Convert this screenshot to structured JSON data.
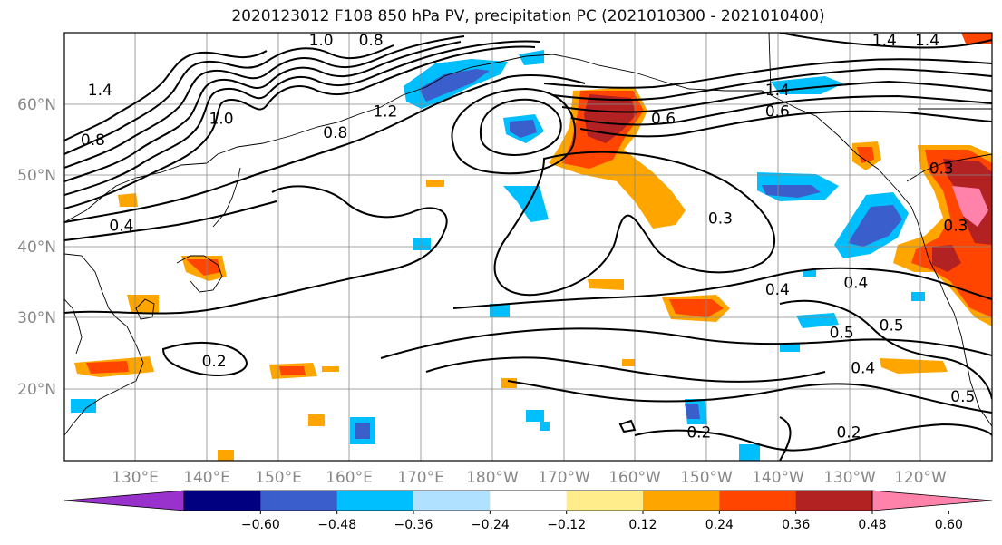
{
  "title": "2020123012 F108 850 hPa PV, precipitation PC (2021010300 - 2021010400)",
  "latitude_labels": [
    "60°N",
    "50°N",
    "40°N",
    "30°N",
    "20°N"
  ],
  "longitude_labels": [
    "130°E",
    "140°E",
    "150°E",
    "160°E",
    "170°E",
    "180°W",
    "170°W",
    "160°W",
    "150°W",
    "140°W",
    "130°W",
    "120°W"
  ],
  "contour_labels": [
    {
      "text": "1.0",
      "lon": 156,
      "lat": 69
    },
    {
      "text": "0.8",
      "lon": 163,
      "lat": 69
    },
    {
      "text": "1.4",
      "lon": 125,
      "lat": 62
    },
    {
      "text": "1.0",
      "lon": 142,
      "lat": 58
    },
    {
      "text": "0.8",
      "lon": 124,
      "lat": 55
    },
    {
      "text": "0.8",
      "lon": 158,
      "lat": 56
    },
    {
      "text": "1.2",
      "lon": 165,
      "lat": 59
    },
    {
      "text": "0.4",
      "lon": 128,
      "lat": 43
    },
    {
      "text": "0.2",
      "lon": 141,
      "lat": 24
    },
    {
      "text": "1.4",
      "lon": -140,
      "lat": 62
    },
    {
      "text": "0.6",
      "lon": -140,
      "lat": 59
    },
    {
      "text": "0.6",
      "lon": -156,
      "lat": 58
    },
    {
      "text": "1.4",
      "lon": -125,
      "lat": 69
    },
    {
      "text": "1.4",
      "lon": -119,
      "lat": 69
    },
    {
      "text": "0.3",
      "lon": -148,
      "lat": 44
    },
    {
      "text": "0.3",
      "lon": -117,
      "lat": 51
    },
    {
      "text": "0.3",
      "lon": -115,
      "lat": 43
    },
    {
      "text": "0.4",
      "lon": -140,
      "lat": 34
    },
    {
      "text": "0.4",
      "lon": -129,
      "lat": 35
    },
    {
      "text": "0.5",
      "lon": -131,
      "lat": 28
    },
    {
      "text": "0.5",
      "lon": -124,
      "lat": 29
    },
    {
      "text": "0.4",
      "lon": -128,
      "lat": 23
    },
    {
      "text": "0.5",
      "lon": -114,
      "lat": 19
    },
    {
      "text": "0.2",
      "lon": -151,
      "lat": 14
    },
    {
      "text": "0.2",
      "lon": -130,
      "lat": 14
    }
  ],
  "colorbar": {
    "tick_labels": [
      "−0.60",
      "−0.48",
      "−0.36",
      "−0.24",
      "−0.12",
      "0.12",
      "0.24",
      "0.36",
      "0.48",
      "0.60"
    ],
    "colors": [
      "#9932CC",
      "#000080",
      "#3A5FCD",
      "#00BFFF",
      "#B0E2FF",
      "#FFFFFF",
      "#FFEC8B",
      "#FFA500",
      "#FF4500",
      "#B22222",
      "#FF82AB"
    ]
  },
  "colors": {
    "land_outline": "#000000",
    "grid": "#888888",
    "contour": "#000000",
    "axis_label": "#888888"
  }
}
